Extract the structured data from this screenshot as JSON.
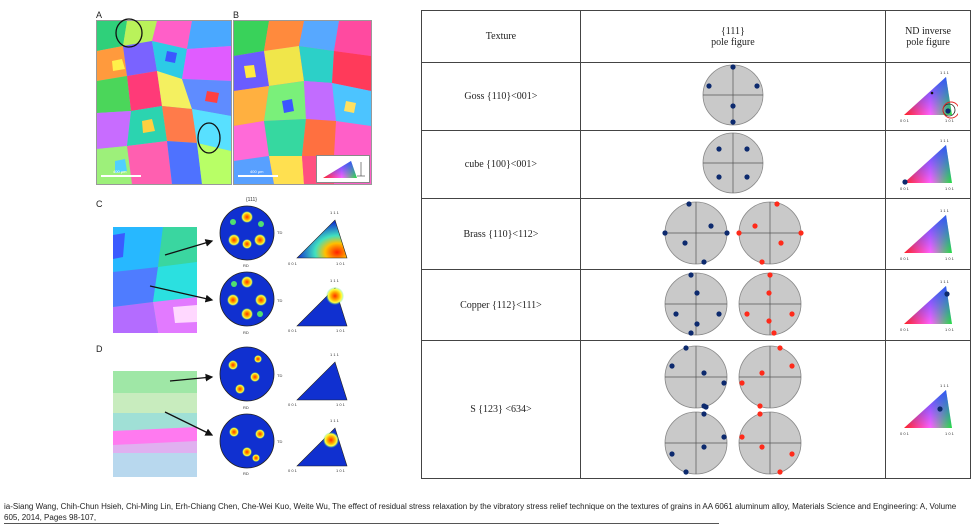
{
  "panels": {
    "A": "A",
    "B": "B",
    "C": "C",
    "D": "D",
    "scale_a": "400 μm",
    "scale_b": "400 μm",
    "pf_111": "{111}",
    "td": "TD",
    "rd": "RD",
    "ipf_111": "1 1 1",
    "ipf_001": "0 0 1",
    "ipf_101": "1 0 1"
  },
  "table": {
    "headers": {
      "texture": "Texture",
      "pole_a": "{111}",
      "pole_b": "pole figure",
      "nd_a": "ND inverse",
      "nd_b": "pole figure"
    },
    "rows": [
      {
        "label": "Goss {110}<001>"
      },
      {
        "label": "cube {100}<001>"
      },
      {
        "label": "Brass {110}<112>"
      },
      {
        "label": "Copper {112}<111>"
      },
      {
        "label": "S {123} <634>"
      }
    ],
    "ipf_labels": {
      "top": "1 1 1",
      "left": "0 0 1",
      "right": "1 0 1"
    }
  },
  "colors": {
    "dot_blue": "#0d2a6e",
    "dot_red": "#ff2a1a",
    "circle_fill": "#c9c9c9",
    "highlight": "#e52222"
  },
  "citation": "ia-Siang Wang, Chih-Chun Hsieh, Chi-Ming Lin, Erh-Chiang Chen, Che-Wei Kuo, Weite Wu, The effect of residual stress relaxation by the vibratory stress relief technique on the textures of grains in AA 6061 aluminum alloy, Materials Science and Engineering: A, Volume 605, 2014, Pages 98-107,"
}
